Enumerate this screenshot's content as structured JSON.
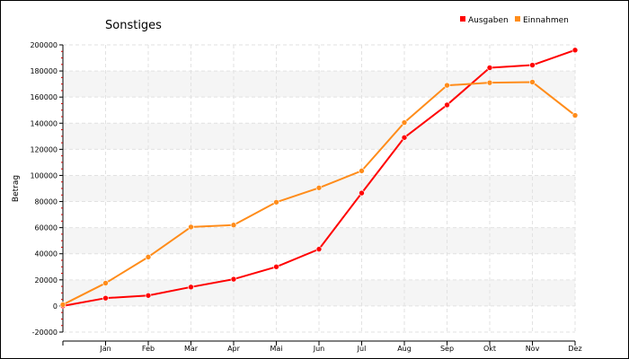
{
  "chart_data": {
    "type": "line",
    "title": "Sonstiges",
    "ylabel": "Betrag",
    "xlabel": "",
    "ylim": [
      -20000,
      200000
    ],
    "yticks": [
      -20000,
      0,
      20000,
      40000,
      60000,
      80000,
      100000,
      120000,
      140000,
      160000,
      180000,
      200000
    ],
    "categories": [
      "",
      "Jan",
      "Feb",
      "Mar",
      "Apr",
      "Mai",
      "Jun",
      "Jul",
      "Aug",
      "Sep",
      "Okt",
      "Nov",
      "Dez"
    ],
    "grid": true,
    "legend_position": "top-right",
    "series": [
      {
        "name": "Ausgaben",
        "color": "#ff0000",
        "values": [
          0,
          6000,
          8000,
          14500,
          20500,
          30000,
          43500,
          86500,
          129000,
          154000,
          182500,
          184500,
          196000
        ]
      },
      {
        "name": "Einnahmen",
        "color": "#ff8c1a",
        "values": [
          1000,
          17500,
          37500,
          60500,
          62000,
          79500,
          90500,
          103500,
          140500,
          169000,
          171000,
          171500,
          146000
        ]
      }
    ]
  }
}
